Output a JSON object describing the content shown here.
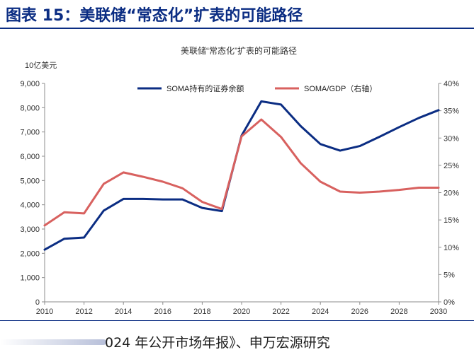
{
  "header": {
    "title": "图表 15：美联储“常态化”扩表的可能路径"
  },
  "footer": {
    "source": "024 年公开市场年报》、申万宏源研究"
  },
  "chart_data": {
    "type": "line",
    "title": "美联储“常态化”扩表的可能路径",
    "left_axis_unit": "10亿美元",
    "x_ticks": [
      "2010",
      "2012",
      "2014",
      "2016",
      "2018",
      "2020",
      "2022",
      "2024",
      "2026",
      "2028",
      "2030"
    ],
    "xlim": [
      2010,
      2030
    ],
    "y_left_ticks": [
      "0",
      "1,000",
      "2,000",
      "3,000",
      "4,000",
      "5,000",
      "6,000",
      "7,000",
      "8,000",
      "9,000"
    ],
    "ylim_left": [
      0,
      9000
    ],
    "y_right_ticks": [
      "0%",
      "5%",
      "10%",
      "15%",
      "20%",
      "25%",
      "30%",
      "35%",
      "40%"
    ],
    "ylim_right": [
      0,
      40
    ],
    "legend_position": "top",
    "grid": false,
    "series": [
      {
        "name": "SOMA持有的证券余额",
        "axis": "left",
        "color": "#0b2d83",
        "x": [
          2010,
          2011,
          2012,
          2013,
          2014,
          2015,
          2016,
          2017,
          2018,
          2019,
          2020,
          2021,
          2022,
          2023,
          2024,
          2025,
          2026,
          2027,
          2028,
          2029,
          2030
        ],
        "y": [
          2150,
          2600,
          2650,
          3760,
          4240,
          4240,
          4220,
          4220,
          3870,
          3740,
          6850,
          8260,
          8130,
          7240,
          6500,
          6230,
          6420,
          6800,
          7200,
          7580,
          7900
        ]
      },
      {
        "name": "SOMA/GDP（右轴）",
        "axis": "right",
        "color": "#d8615f",
        "x": [
          2010,
          2011,
          2012,
          2013,
          2014,
          2015,
          2016,
          2017,
          2018,
          2019,
          2020,
          2021,
          2022,
          2023,
          2024,
          2025,
          2026,
          2027,
          2028,
          2029,
          2030
        ],
        "y": [
          14.0,
          16.4,
          16.2,
          21.6,
          23.7,
          22.9,
          22.0,
          20.8,
          18.3,
          17.0,
          30.3,
          33.4,
          30.2,
          25.4,
          22.0,
          20.2,
          20.0,
          20.2,
          20.5,
          20.9,
          20.9
        ]
      }
    ]
  }
}
